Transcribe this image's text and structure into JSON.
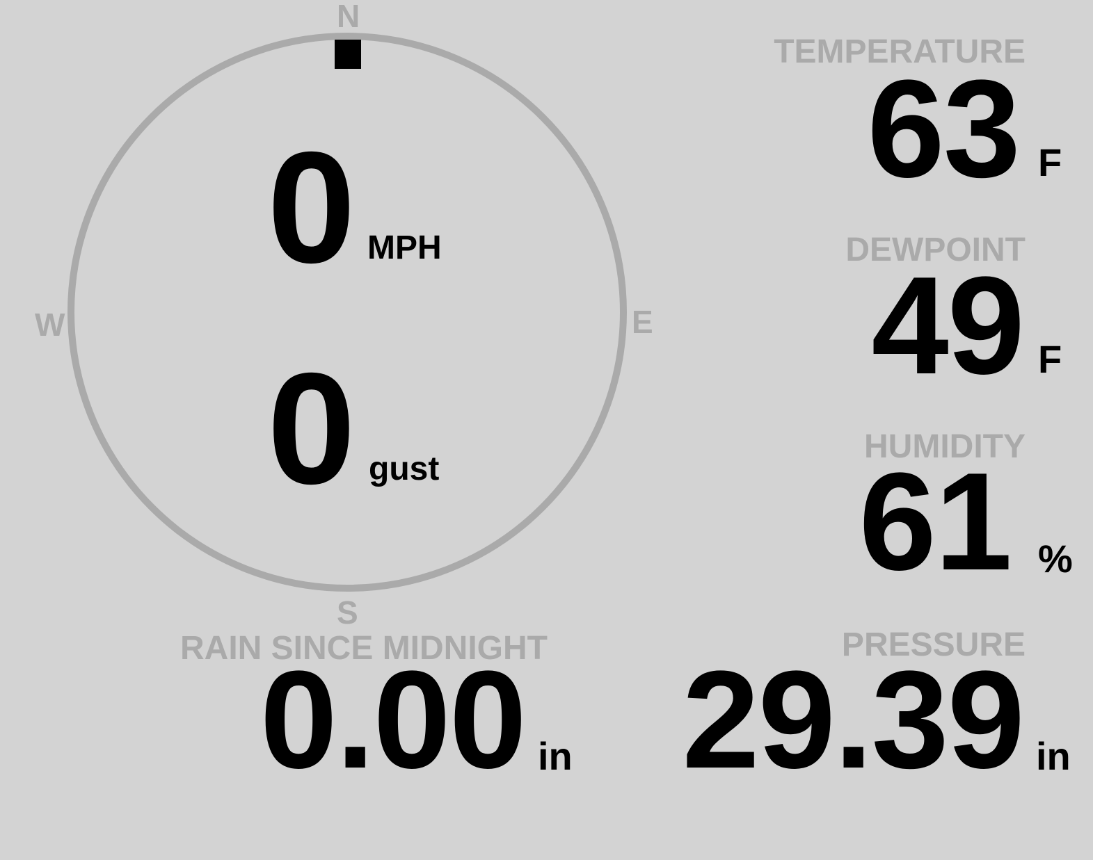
{
  "compass": {
    "north": "N",
    "south": "S",
    "east": "E",
    "west": "W",
    "wind_direction_deg": 0,
    "ring_color": "#aaaaaa",
    "needle_color": "#000000"
  },
  "wind": {
    "speed": "0",
    "speed_unit": "MPH",
    "gust": "0",
    "gust_unit": "gust"
  },
  "temperature": {
    "label": "TEMPERATURE",
    "value": "63",
    "unit": "F"
  },
  "dewpoint": {
    "label": "DEWPOINT",
    "value": "49",
    "unit": "F"
  },
  "humidity": {
    "label": "HUMIDITY",
    "value": "61",
    "unit": "%"
  },
  "pressure": {
    "label": "PRESSURE",
    "value": "29.39",
    "unit": "in"
  },
  "rain": {
    "label": "RAIN SINCE MIDNIGHT",
    "value": "0.00",
    "unit": "in"
  },
  "colors": {
    "background": "#d3d3d3",
    "label": "#aaaaaa",
    "value": "#000000"
  }
}
